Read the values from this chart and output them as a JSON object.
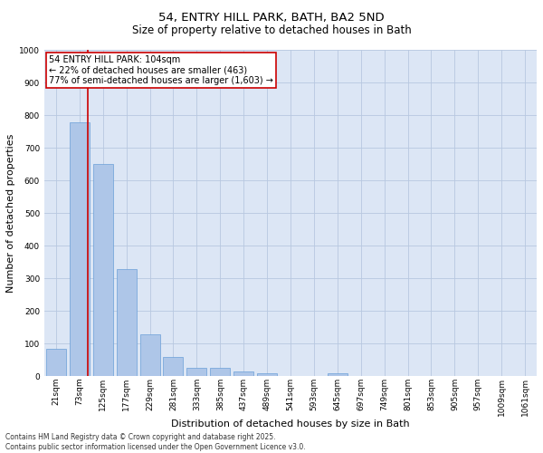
{
  "title1": "54, ENTRY HILL PARK, BATH, BA2 5ND",
  "title2": "Size of property relative to detached houses in Bath",
  "xlabel": "Distribution of detached houses by size in Bath",
  "ylabel": "Number of detached properties",
  "categories": [
    "21sqm",
    "73sqm",
    "125sqm",
    "177sqm",
    "229sqm",
    "281sqm",
    "333sqm",
    "385sqm",
    "437sqm",
    "489sqm",
    "541sqm",
    "593sqm",
    "645sqm",
    "697sqm",
    "749sqm",
    "801sqm",
    "853sqm",
    "905sqm",
    "957sqm",
    "1009sqm",
    "1061sqm"
  ],
  "values": [
    85,
    780,
    650,
    330,
    130,
    60,
    25,
    25,
    15,
    8,
    0,
    0,
    10,
    0,
    0,
    0,
    0,
    0,
    0,
    0,
    0
  ],
  "bar_color": "#aec6e8",
  "bar_edge_color": "#6a9fd8",
  "grid_color": "#b8c8e0",
  "background_color": "#dce6f5",
  "vline_color": "#cc0000",
  "annotation_text": "54 ENTRY HILL PARK: 104sqm\n← 22% of detached houses are smaller (463)\n77% of semi-detached houses are larger (1,603) →",
  "annotation_box_color": "#cc0000",
  "ylim": [
    0,
    1000
  ],
  "yticks": [
    0,
    100,
    200,
    300,
    400,
    500,
    600,
    700,
    800,
    900,
    1000
  ],
  "footnote": "Contains HM Land Registry data © Crown copyright and database right 2025.\nContains public sector information licensed under the Open Government Licence v3.0.",
  "title1_fontsize": 9.5,
  "title2_fontsize": 8.5,
  "tick_fontsize": 6.5,
  "label_fontsize": 8,
  "annot_fontsize": 7,
  "footnote_fontsize": 5.5
}
